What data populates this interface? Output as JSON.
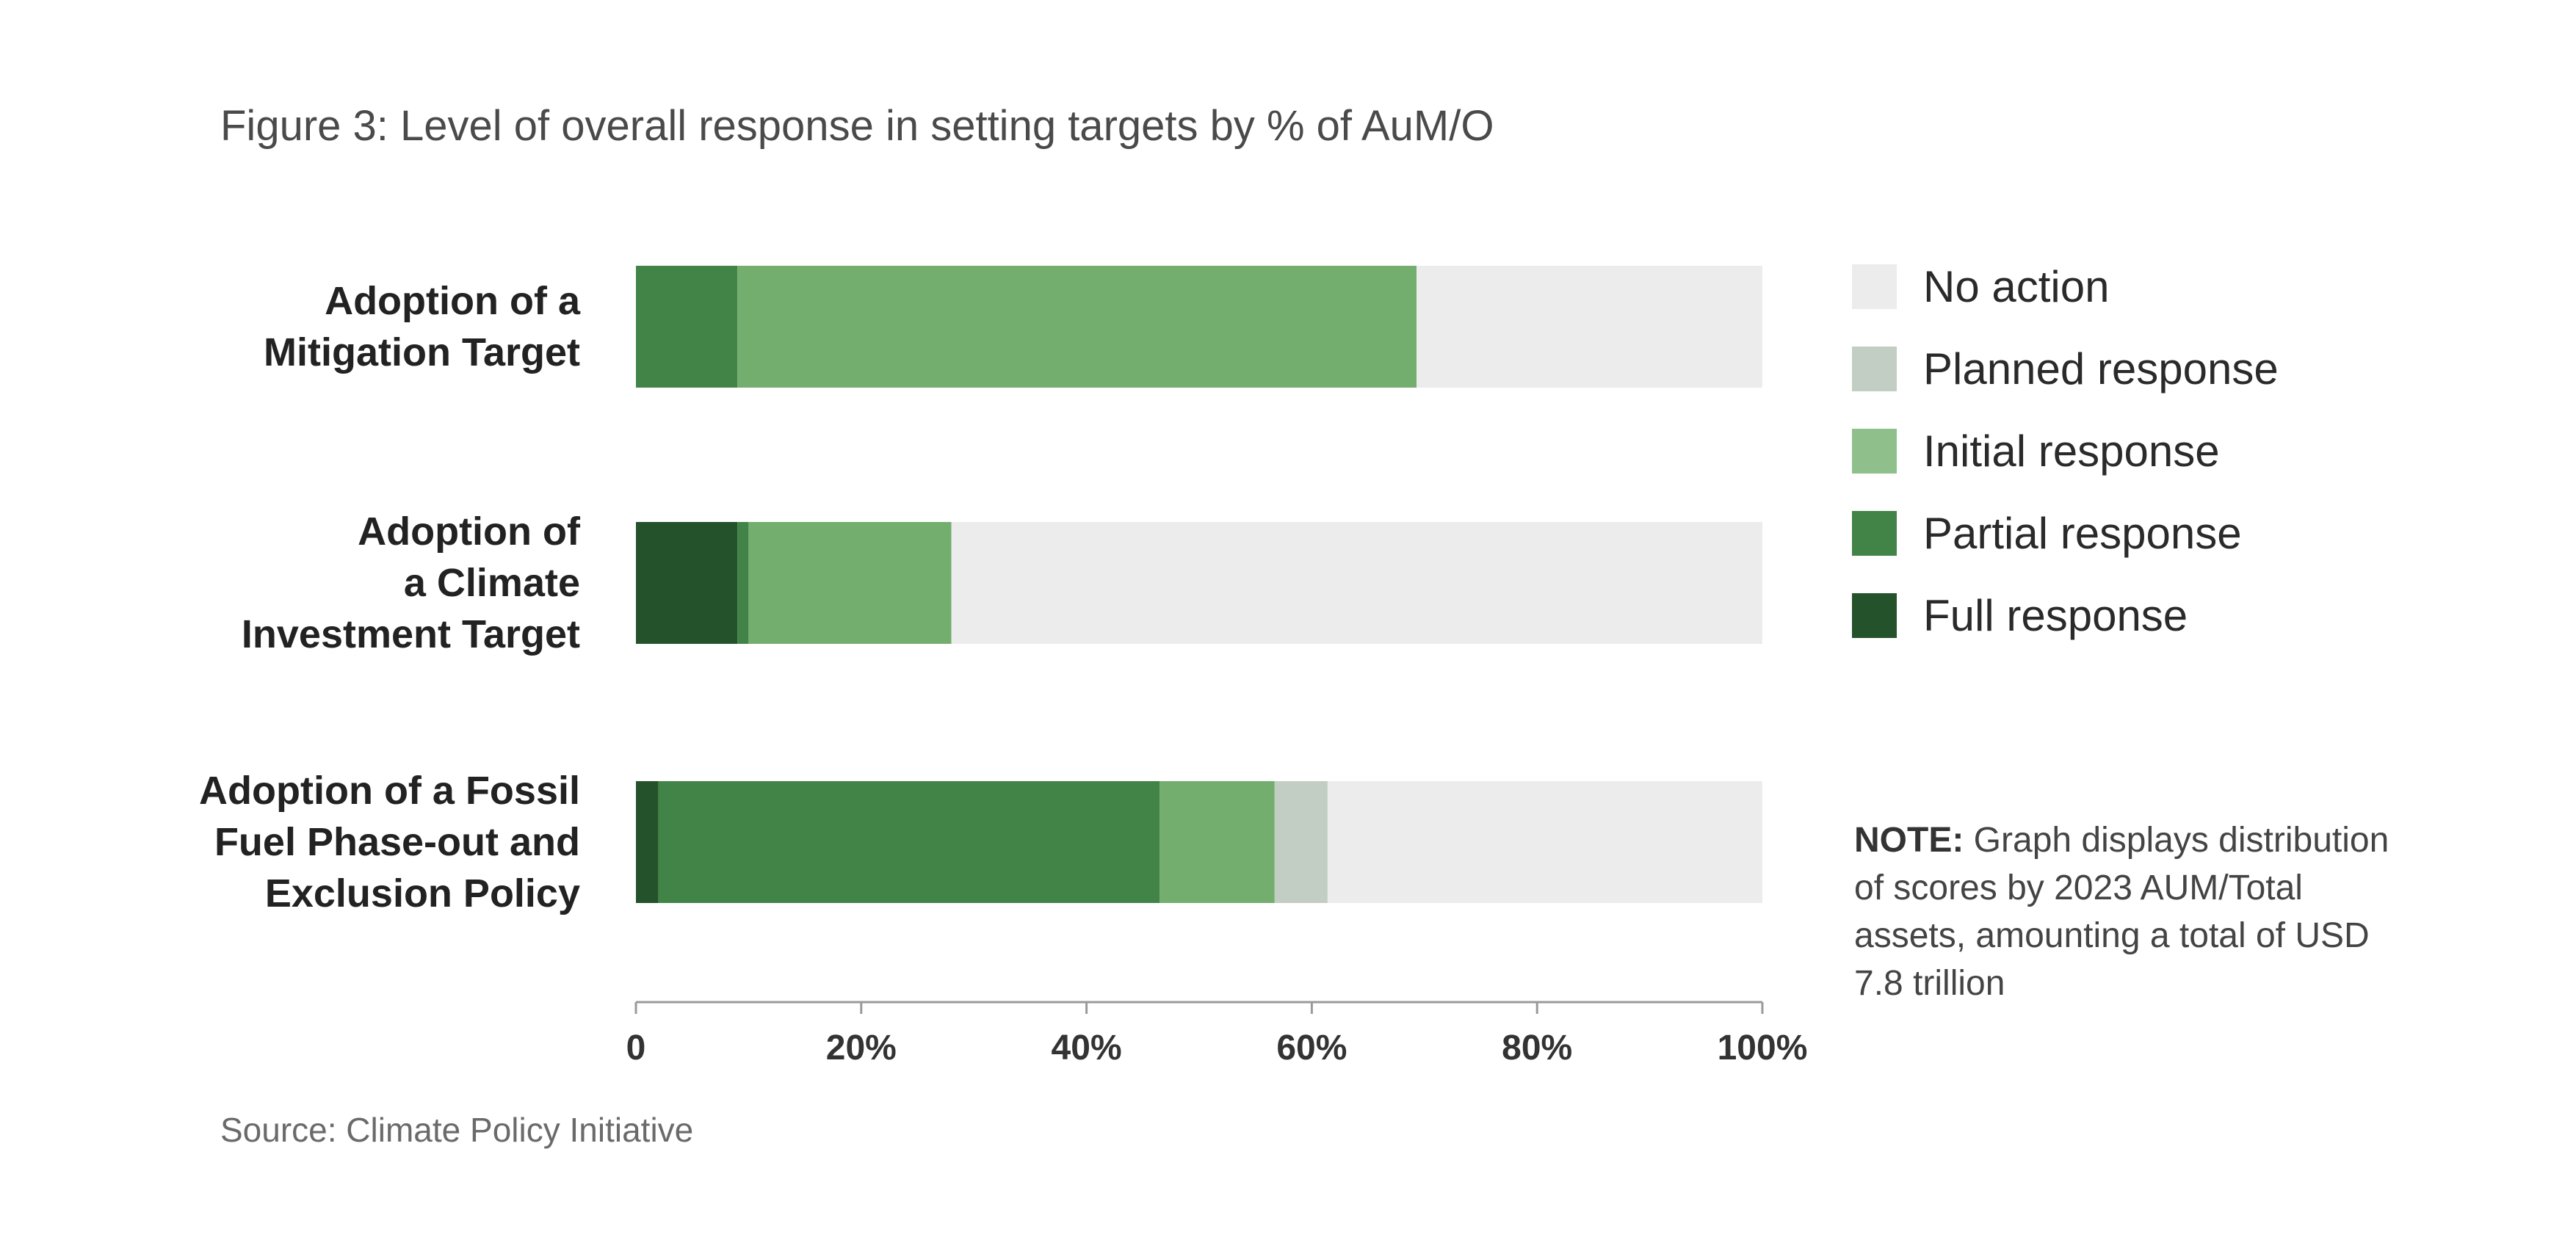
{
  "title": "Figure 3: Level of overall response in setting targets by % of AuM/O",
  "source": "Source: Climate Policy Initiative",
  "note": {
    "label": "NOTE:",
    "text": "Graph displays distribution of scores by 2023 AUM/Total assets, amounting a total of USD 7.8 trillion"
  },
  "colors": {
    "full": "#24522b",
    "partial": "#428447",
    "initial": "#73ae6f",
    "planned": "#c2cdc3",
    "none": "#ececec",
    "initial_legend": "#8fc08b"
  },
  "legend": [
    {
      "key": "none",
      "label": "No action",
      "color": "#ececec"
    },
    {
      "key": "planned",
      "label": "Planned response",
      "color": "#c2cdc3"
    },
    {
      "key": "initial",
      "label": "Initial response",
      "color": "#8fc08b"
    },
    {
      "key": "partial",
      "label": "Partial response",
      "color": "#428447"
    },
    {
      "key": "full",
      "label": "Full response",
      "color": "#24522b"
    }
  ],
  "chart_data": {
    "type": "bar",
    "orientation": "horizontal",
    "stacked": true,
    "xlim": [
      0,
      100
    ],
    "ticks": [
      0,
      20,
      40,
      60,
      80,
      100
    ],
    "tick_labels": [
      "0",
      "20%",
      "40%",
      "60%",
      "80%",
      "100%"
    ],
    "categories": [
      [
        "Adoption of a",
        "Mitigation Target"
      ],
      [
        "Adoption of",
        "a Climate",
        "Investment Target"
      ],
      [
        "Adoption of a Fossil",
        "Fuel Phase-out and",
        "Exclusion Policy"
      ]
    ],
    "series": [
      {
        "name": "Full response",
        "key": "full",
        "values": [
          0,
          9,
          2
        ]
      },
      {
        "name": "Partial response",
        "key": "partial",
        "values": [
          9,
          1,
          44.5
        ]
      },
      {
        "name": "Initial response",
        "key": "initial",
        "values": [
          60.3,
          18,
          10.2
        ]
      },
      {
        "name": "Planned response",
        "key": "planned",
        "values": [
          0,
          0,
          4.7
        ]
      },
      {
        "name": "No action",
        "key": "none",
        "values": [
          30.7,
          72,
          38.6
        ]
      }
    ],
    "legend_position": "right",
    "grid": false
  }
}
